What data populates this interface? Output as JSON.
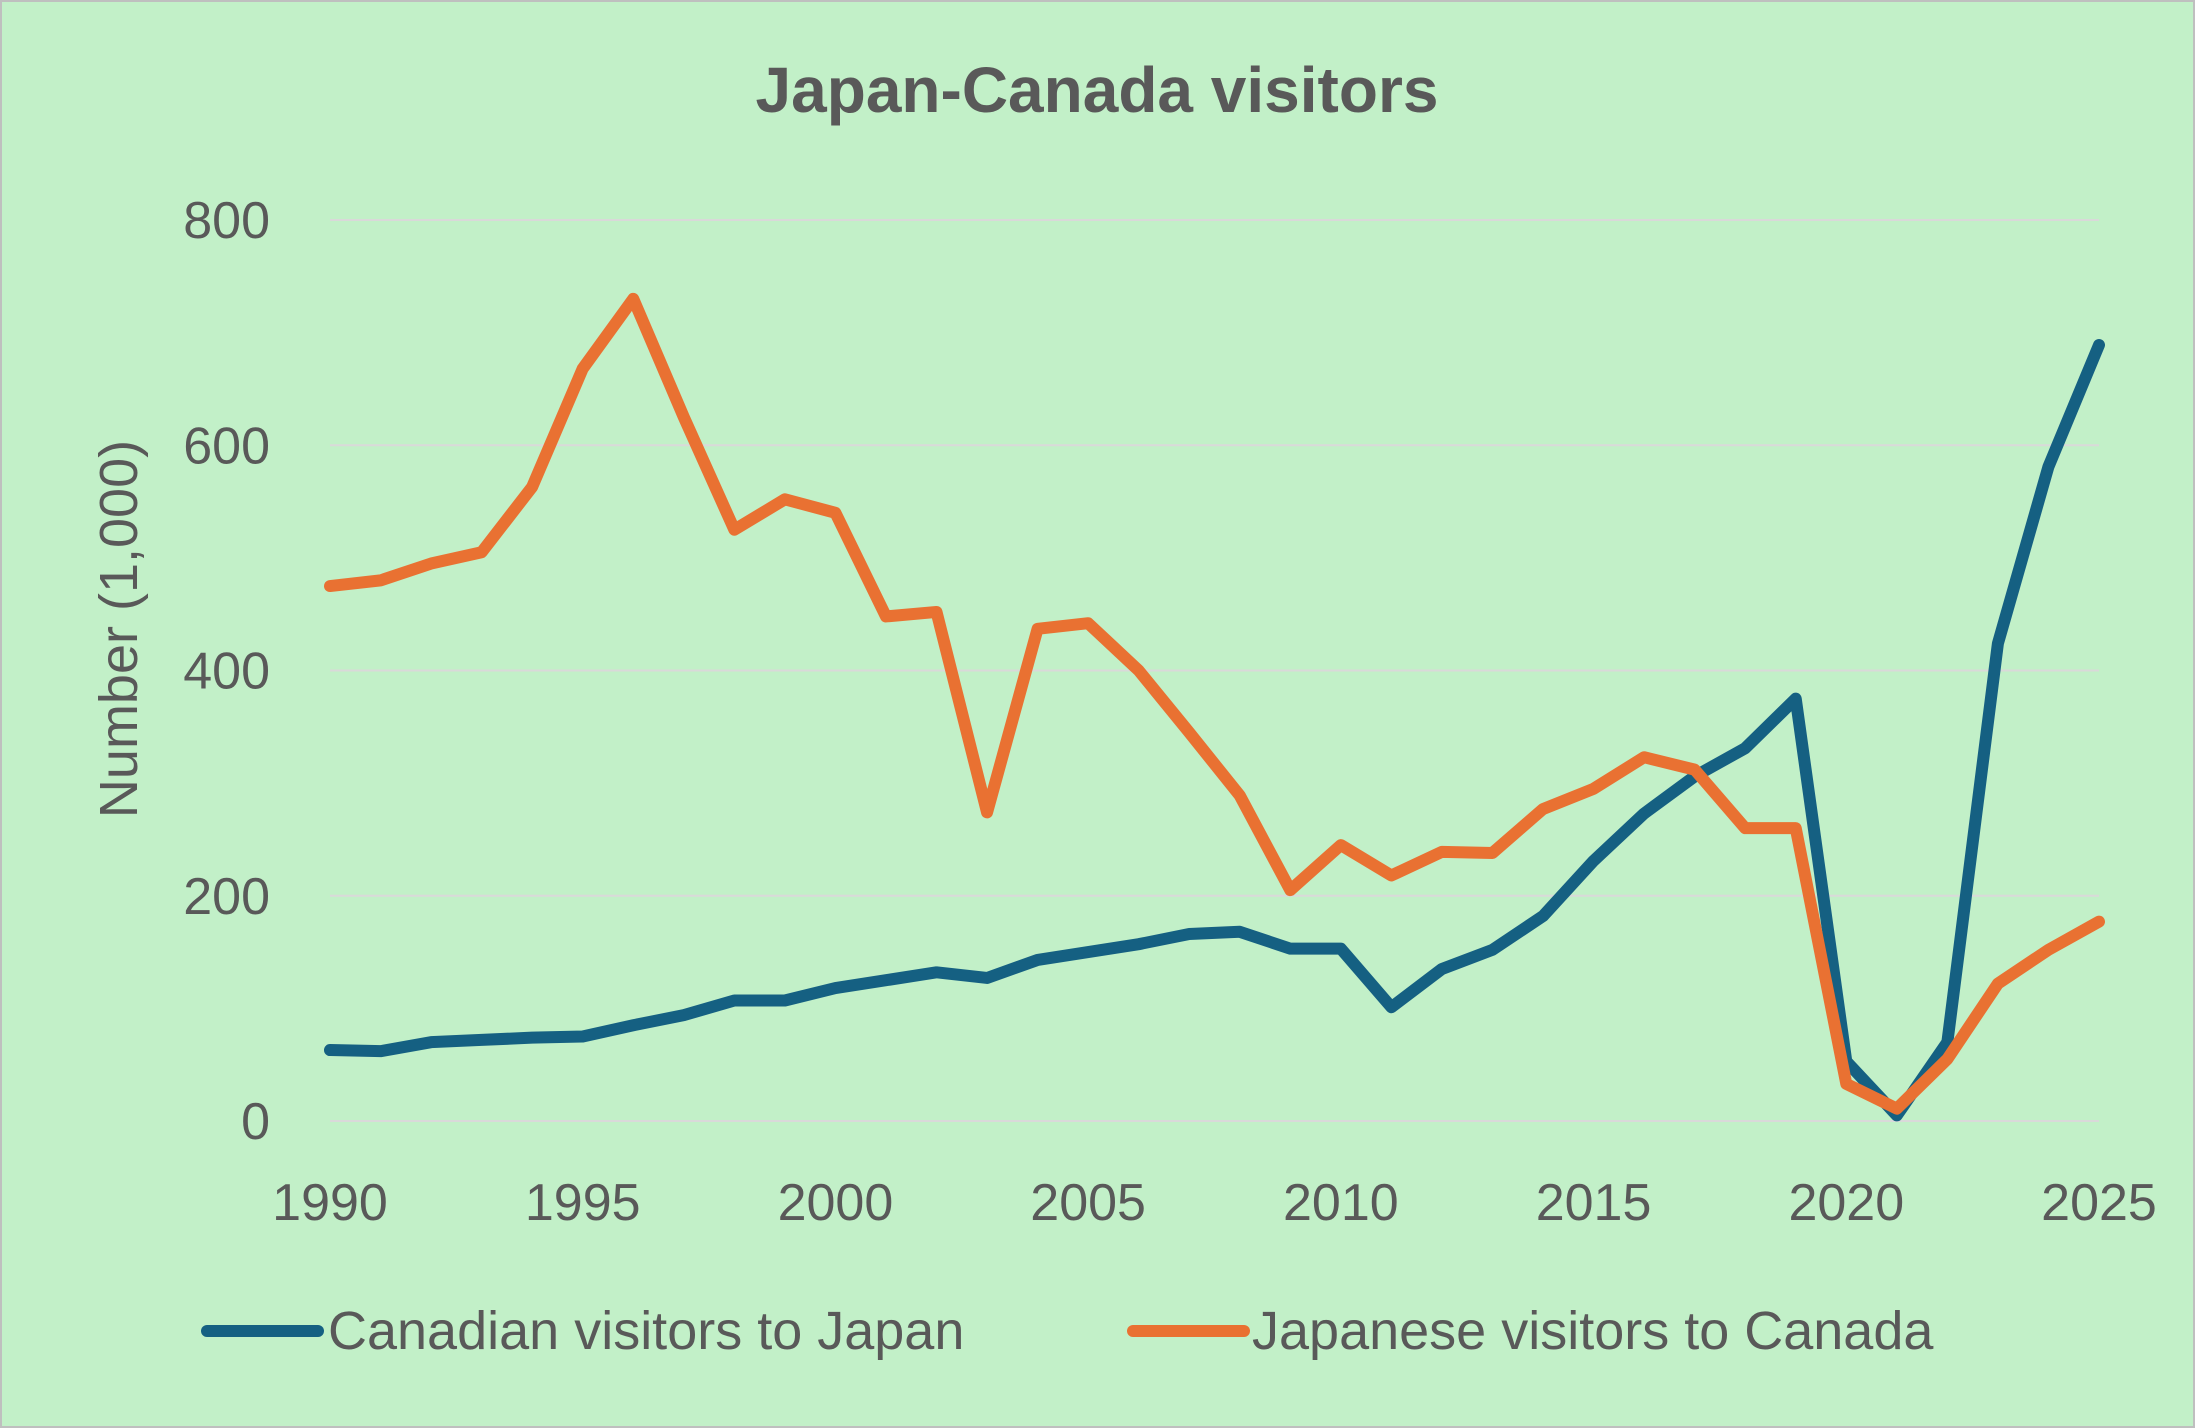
{
  "colors": {
    "background": "#c2f0c8",
    "gridline": "#d9d9d9",
    "text": "#595959",
    "canadian_series": "#156082",
    "japanese_series": "#e97132"
  },
  "chart_data": {
    "type": "line",
    "title": "Japan-Canada visitors",
    "xlabel": "",
    "ylabel": "Number (1,000)",
    "xlim": [
      1990,
      2025
    ],
    "ylim": [
      0,
      800
    ],
    "grid": true,
    "legend": "bottom",
    "x_ticks": [
      "1990",
      "1995",
      "2000",
      "2005",
      "2010",
      "2015",
      "2020",
      "2025"
    ],
    "y_ticks": [
      "0",
      "200",
      "400",
      "600",
      "800"
    ],
    "x": [
      1990,
      1991,
      1992,
      1993,
      1994,
      1995,
      1996,
      1997,
      1998,
      1999,
      2000,
      2001,
      2002,
      2003,
      2004,
      2005,
      2006,
      2007,
      2008,
      2009,
      2010,
      2011,
      2012,
      2013,
      2014,
      2015,
      2016,
      2017,
      2018,
      2019,
      2020,
      2021,
      2022,
      2023,
      2024,
      2025
    ],
    "series": [
      {
        "name": "Canadian visitors to Japan",
        "color": "#156082",
        "values": [
          63,
          62,
          70,
          72,
          74,
          75,
          85,
          94,
          107,
          107,
          118,
          125,
          132,
          127,
          143,
          150,
          157,
          166,
          168,
          153,
          153,
          101,
          135,
          152,
          182,
          231,
          273,
          306,
          331,
          375,
          53,
          5,
          70,
          424,
          581,
          689
        ]
      },
      {
        "name": "Japanese visitors to Canada",
        "color": "#e97132",
        "values": [
          475,
          480,
          495,
          505,
          563,
          668,
          730,
          625,
          525,
          552,
          540,
          448,
          452,
          274,
          437,
          442,
          400,
          345,
          289,
          205,
          245,
          218,
          239,
          238,
          277,
          295,
          323,
          312,
          260,
          260,
          33,
          11,
          55,
          122,
          152,
          177
        ]
      }
    ]
  }
}
